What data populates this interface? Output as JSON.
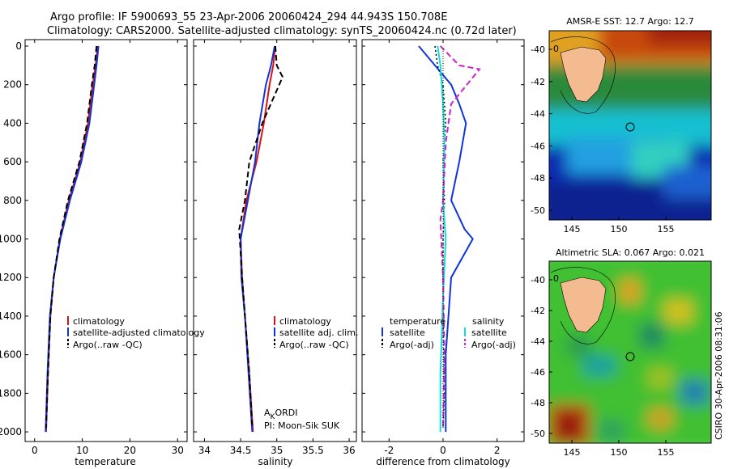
{
  "header": {
    "line1": "Argo profile: IF 5900693_55 23-Apr-2006 20060424_294 44.943S 150.708E",
    "line2": "Climatology: CARS2000. Satellite-adjusted climatology: synTS_20060424.nc (0.72d later)"
  },
  "panels": {
    "temperature": {
      "xlabel": "temperature",
      "xticks": [
        0,
        10,
        20,
        30
      ],
      "xlim": [
        -2,
        32
      ]
    },
    "salinity": {
      "xlabel": "salinity",
      "xticks": [
        "34",
        "34.5",
        "35",
        "35.5",
        "36"
      ],
      "xticks_num": [
        34,
        34.5,
        35,
        35.5,
        36
      ],
      "xlim": [
        33.85,
        36.1
      ]
    },
    "difference": {
      "xlabel": "difference from climatology",
      "xticks": [
        "-2",
        "0",
        "2"
      ],
      "xticks_num": [
        -2,
        0,
        2
      ],
      "xlim": [
        -3,
        3
      ]
    },
    "yticks": [
      0,
      200,
      400,
      600,
      800,
      1000,
      1200,
      1400,
      1600,
      1800,
      2000
    ],
    "ylim": [
      0,
      2050
    ]
  },
  "legends": {
    "temperature": [
      "climatology",
      "satellite-adjusted climatology",
      "Argo(..raw -QC)"
    ],
    "salinity": [
      "climatology",
      "satellite adj. clim.",
      "Argo(..raw -QC)"
    ],
    "difference_left_title": "temperature",
    "difference_left": [
      "satellite",
      "Argo(-adj)"
    ],
    "difference_right_title": "salinity",
    "difference_right": [
      "satellite",
      "Argo(-adj)"
    ]
  },
  "credits": {
    "program_main": "A",
    "program_sub": "K",
    "program_rest": "ORDI",
    "pi": "PI: Moon-Sik SUK"
  },
  "maps": {
    "sst": {
      "title": "AMSR-E SST: 12.7 Argo: 12.7",
      "yticks": [
        "-40",
        "-42",
        "-44",
        "-46",
        "-48",
        "-50"
      ],
      "xticks": [
        "145",
        "150",
        "155"
      ],
      "zero_label": "0"
    },
    "sla": {
      "title": "Altimetric SLA: 0.067 Argo: 0.021",
      "yticks": [
        "-40",
        "-42",
        "-44",
        "-46",
        "-48",
        "-50"
      ],
      "xticks": [
        "145",
        "150",
        "155"
      ],
      "zero_label": "0"
    }
  },
  "side_stamp": "CSIRO 30-Apr-2006 08:31:06",
  "colors": {
    "climatology": "#dd1111",
    "satellite": "#1133dd",
    "argo": "#000000",
    "sal_satellite": "#11dddd",
    "sal_argo": "#cc22cc"
  },
  "chart_data": [
    {
      "type": "line",
      "xlabel": "temperature",
      "ylabel": "",
      "ylim": [
        0,
        2050
      ],
      "series": [
        {
          "name": "climatology",
          "x": [
            13.2,
            12.8,
            12.2,
            11.2,
            9.6,
            7.2,
            5.3,
            4.0,
            3.3,
            2.8,
            2.4
          ],
          "y": [
            0,
            100,
            200,
            400,
            600,
            800,
            1000,
            1200,
            1400,
            1700,
            2000
          ]
        },
        {
          "name": "satellite-adjusted climatology",
          "x": [
            13.4,
            13.0,
            12.5,
            11.5,
            9.8,
            7.4,
            5.4,
            4.0,
            3.2,
            2.7,
            2.3
          ],
          "y": [
            0,
            100,
            200,
            400,
            600,
            800,
            1000,
            1200,
            1400,
            1700,
            2000
          ]
        },
        {
          "name": "Argo(..raw -QC)",
          "x": [
            13.0,
            12.6,
            12.0,
            11.0,
            9.4,
            7.0,
            5.2,
            4.0,
            3.3,
            2.8,
            2.4
          ],
          "y": [
            0,
            100,
            200,
            400,
            600,
            800,
            1000,
            1200,
            1400,
            1700,
            1980
          ]
        }
      ]
    },
    {
      "type": "line",
      "xlabel": "salinity",
      "ylabel": "",
      "ylim": [
        0,
        2050
      ],
      "series": [
        {
          "name": "climatology",
          "x": [
            34.98,
            34.95,
            34.9,
            34.82,
            34.72,
            34.58,
            34.5,
            34.52,
            34.56,
            34.62,
            34.67
          ],
          "y": [
            0,
            100,
            200,
            400,
            600,
            800,
            1000,
            1200,
            1400,
            1700,
            2000
          ]
        },
        {
          "name": "satellite adj. clim.",
          "x": [
            34.97,
            34.92,
            34.85,
            34.76,
            34.7,
            34.6,
            34.5,
            34.51,
            34.56,
            34.61,
            34.66
          ],
          "y": [
            0,
            100,
            200,
            400,
            600,
            800,
            1000,
            1200,
            1400,
            1700,
            2000
          ]
        },
        {
          "name": "Argo(..raw -QC)",
          "x": [
            34.98,
            35.0,
            35.08,
            34.8,
            34.62,
            34.56,
            34.48,
            34.52,
            34.56,
            34.62,
            34.66
          ],
          "y": [
            0,
            100,
            160,
            400,
            600,
            800,
            950,
            1200,
            1400,
            1700,
            1980
          ]
        }
      ]
    },
    {
      "type": "line",
      "xlabel": "difference from climatology",
      "ylabel": "",
      "ylim": [
        0,
        2050
      ],
      "series": [
        {
          "name": "temperature satellite",
          "x": [
            -0.9,
            -0.3,
            0.3,
            0.6,
            0.85,
            0.6,
            0.3,
            0.8,
            1.1,
            0.3,
            0.1,
            0.1
          ],
          "y": [
            0,
            100,
            200,
            300,
            400,
            600,
            800,
            950,
            1000,
            1200,
            1600,
            2000
          ]
        },
        {
          "name": "temperature Argo(-adj)",
          "x": [
            -0.3,
            -0.2,
            0.0,
            0.1,
            0.0,
            0.05,
            0.0,
            0.0,
            0.05,
            0.0
          ],
          "y": [
            0,
            100,
            200,
            400,
            600,
            800,
            1000,
            1400,
            1800,
            1980
          ]
        },
        {
          "name": "salinity satellite",
          "x": [
            -0.2,
            -0.1,
            0.0,
            0.05,
            0.0,
            0.1,
            0.0,
            -0.1,
            -0.1
          ],
          "y": [
            0,
            100,
            300,
            500,
            800,
            1000,
            1300,
            1700,
            2000
          ]
        },
        {
          "name": "salinity Argo(-adj)",
          "x": [
            -0.1,
            0.6,
            1.35,
            0.3,
            0.1,
            0.0,
            -0.1,
            0.0,
            0.05,
            0.0
          ],
          "y": [
            0,
            100,
            120,
            300,
            500,
            800,
            900,
            1200,
            1600,
            1980
          ]
        }
      ]
    }
  ]
}
